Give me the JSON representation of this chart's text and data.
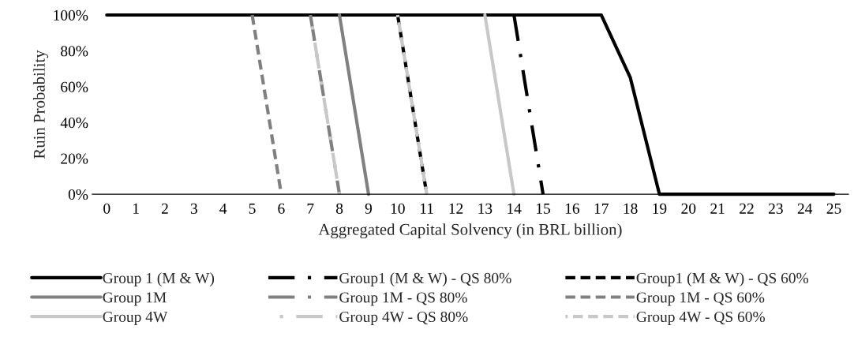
{
  "chart_data": {
    "type": "line",
    "xlabel": "Aggregated Capital Solvency (in BRL billion)",
    "ylabel": "Ruin Probability",
    "categories": [
      "0",
      "1",
      "2",
      "3",
      "4",
      "5",
      "6",
      "7",
      "8",
      "9",
      "10",
      "11",
      "12",
      "13",
      "14",
      "15",
      "16",
      "17",
      "18",
      "19",
      "20",
      "21",
      "22",
      "23",
      "24",
      "25"
    ],
    "ylim": [
      0,
      100
    ],
    "yticks": [
      {
        "value": 0,
        "label": "0%"
      },
      {
        "value": 20,
        "label": "20%"
      },
      {
        "value": 40,
        "label": "40%"
      },
      {
        "value": 60,
        "label": "60%"
      },
      {
        "value": 80,
        "label": "80%"
      },
      {
        "value": 100,
        "label": "100%"
      }
    ],
    "grid": false,
    "legend": "bottom",
    "marker": "none",
    "series": [
      {
        "name": "Group 1 (M & W)",
        "color": "#000000",
        "line_style": "solid",
        "values": [
          100,
          100,
          100,
          100,
          100,
          100,
          100,
          100,
          100,
          100,
          100,
          100,
          100,
          100,
          100,
          100,
          100,
          100,
          65,
          0,
          0,
          0,
          0,
          0,
          0,
          0
        ]
      },
      {
        "name": "Group 1M",
        "color": "#808080",
        "line_style": "solid",
        "values": [
          null,
          null,
          null,
          null,
          null,
          null,
          null,
          null,
          100,
          0,
          null,
          null,
          null,
          null,
          null,
          null,
          null,
          null,
          null,
          null,
          null,
          null,
          null,
          null,
          null,
          null
        ]
      },
      {
        "name": "Group 4W",
        "color": "#c8c8c8",
        "line_style": "solid",
        "values": [
          null,
          null,
          null,
          null,
          null,
          null,
          null,
          null,
          null,
          null,
          null,
          null,
          null,
          100,
          0,
          null,
          null,
          null,
          null,
          null,
          null,
          null,
          null,
          null,
          null,
          null
        ]
      },
      {
        "name": "Group1 (M & W) - QS 80%",
        "color": "#000000",
        "line_style": "dashdot",
        "values": [
          null,
          null,
          null,
          null,
          null,
          null,
          null,
          null,
          null,
          null,
          null,
          null,
          null,
          null,
          100,
          0,
          null,
          null,
          null,
          null,
          null,
          null,
          null,
          null,
          null,
          null
        ]
      },
      {
        "name": "Group 1M - QS 80%",
        "color": "#808080",
        "line_style": "dashdot",
        "values": [
          null,
          null,
          null,
          null,
          null,
          null,
          null,
          100,
          0,
          null,
          null,
          null,
          null,
          null,
          null,
          null,
          null,
          null,
          null,
          null,
          null,
          null,
          null,
          null,
          null,
          null
        ]
      },
      {
        "name": "Group 4W - QS 80%",
        "color": "#c8c8c8",
        "line_style": "dashdot",
        "values": [
          null,
          null,
          null,
          null,
          null,
          null,
          null,
          100,
          0,
          null,
          null,
          null,
          null,
          null,
          null,
          null,
          null,
          null,
          null,
          null,
          null,
          null,
          null,
          null,
          null,
          null
        ]
      },
      {
        "name": "Group1 (M & W) - QS 60%",
        "color": "#000000",
        "line_style": "dashed",
        "values": [
          null,
          null,
          null,
          null,
          null,
          null,
          null,
          null,
          null,
          null,
          100,
          0,
          null,
          null,
          null,
          null,
          null,
          null,
          null,
          null,
          null,
          null,
          null,
          null,
          null,
          null
        ]
      },
      {
        "name": "Group 1M - QS 60%",
        "color": "#808080",
        "line_style": "dashed",
        "values": [
          null,
          null,
          null,
          null,
          null,
          100,
          0,
          null,
          null,
          null,
          null,
          null,
          null,
          null,
          null,
          null,
          null,
          null,
          null,
          null,
          null,
          null,
          null,
          null,
          null,
          null
        ]
      },
      {
        "name": "Group 4W - QS 60%",
        "color": "#c8c8c8",
        "line_style": "dashed",
        "values": [
          null,
          null,
          null,
          null,
          null,
          null,
          null,
          null,
          null,
          null,
          100,
          0,
          null,
          null,
          null,
          null,
          null,
          null,
          null,
          null,
          null,
          null,
          null,
          null,
          null,
          null
        ]
      }
    ]
  }
}
